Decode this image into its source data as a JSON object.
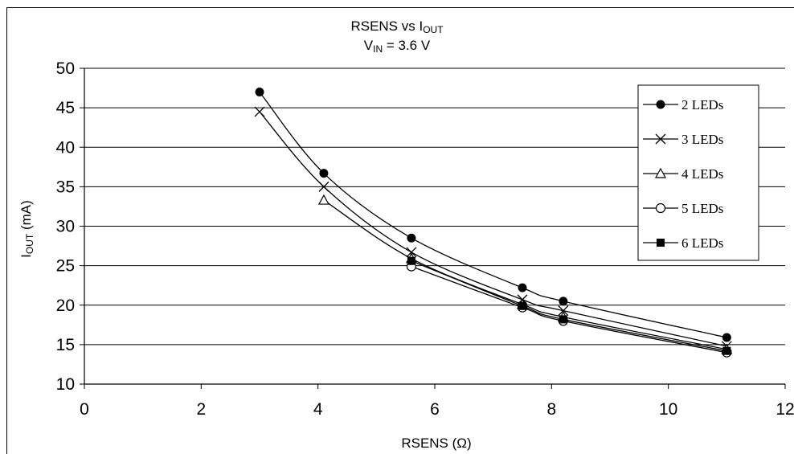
{
  "chart_data": {
    "type": "line",
    "title_line1_main": "RSENS vs I",
    "title_line1_sub": "OUT",
    "title_line2_main": "V",
    "title_line2_sub": "IN",
    "title_line2_rest": " = 3.6 V",
    "xlabel": "RSENS (Ω)",
    "ylabel_main": "I",
    "ylabel_sub": "OUT",
    "ylabel_rest": " (mA)",
    "xlim": [
      0,
      12
    ],
    "ylim": [
      10,
      50
    ],
    "xticks": [
      0,
      2,
      4,
      6,
      8,
      10,
      12
    ],
    "yticks": [
      10,
      15,
      20,
      25,
      30,
      35,
      40,
      45,
      50
    ],
    "grid": "horizontal",
    "legend_position": "right",
    "series": [
      {
        "name": "2 LEDs",
        "marker": "filled-circle",
        "x": [
          3.0,
          4.1,
          5.6,
          7.5,
          8.2,
          11.0
        ],
        "y": [
          47.0,
          36.7,
          28.5,
          22.2,
          20.5,
          15.9
        ]
      },
      {
        "name": "3 LEDs",
        "marker": "x",
        "x": [
          3.0,
          4.1,
          5.6,
          7.5,
          8.2,
          11.0
        ],
        "y": [
          44.5,
          35.0,
          26.7,
          20.7,
          19.3,
          14.8
        ]
      },
      {
        "name": "4 LEDs",
        "marker": "triangle",
        "x": [
          4.1,
          5.6,
          7.5,
          8.2,
          11.0
        ],
        "y": [
          33.3,
          25.9,
          20.1,
          18.5,
          14.4
        ]
      },
      {
        "name": "5 LEDs",
        "marker": "open-circle",
        "x": [
          5.6,
          7.5,
          8.2,
          11.0
        ],
        "y": [
          24.9,
          19.7,
          18.0,
          14.0
        ]
      },
      {
        "name": "6 LEDs",
        "marker": "filled-square",
        "x": [
          5.6,
          7.5,
          8.2,
          11.0
        ],
        "y": [
          25.6,
          19.9,
          18.2,
          14.2
        ]
      }
    ]
  }
}
